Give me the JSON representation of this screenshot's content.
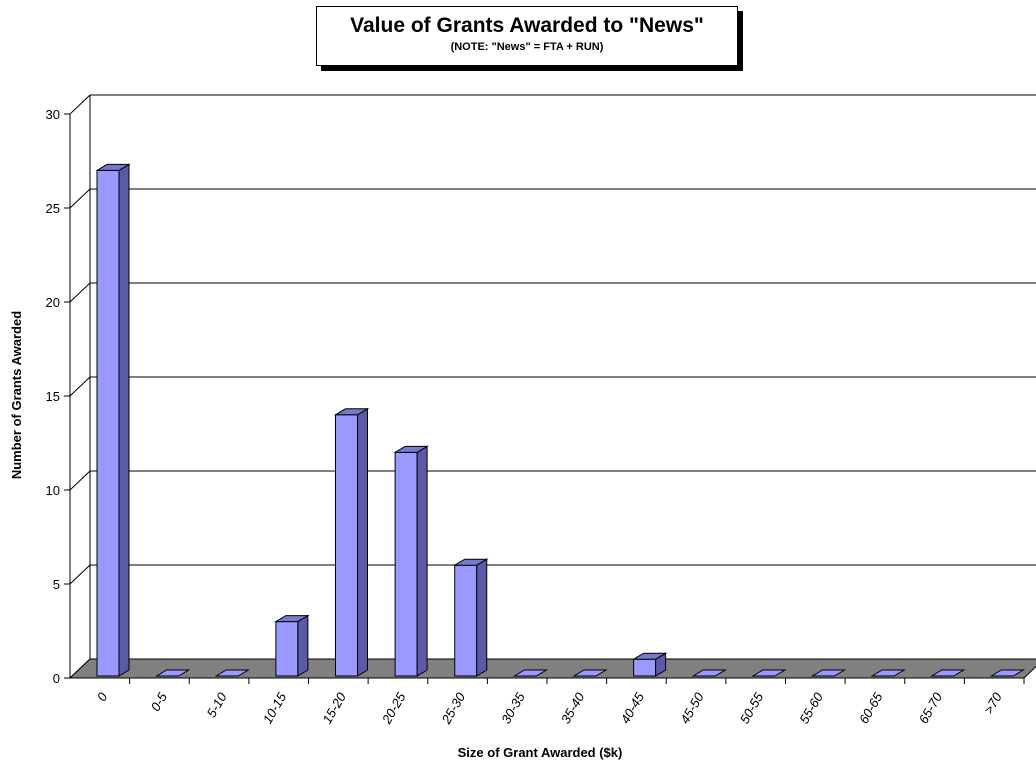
{
  "chart_data": {
    "type": "bar",
    "title": "Value of Grants Awarded to \"News\"",
    "subtitle": "(NOTE: \"News\" = FTA + RUN)",
    "xlabel": "Size of Grant Awarded ($k)",
    "ylabel": "Number of Grants Awarded",
    "categories": [
      "0",
      "0-5",
      "5-10",
      "10-15",
      "15-20",
      "20-25",
      "25-30",
      "30-35",
      "35-40",
      "40-45",
      "45-50",
      "50-55",
      "55-60",
      "60-65",
      "65-70",
      ">70"
    ],
    "values": [
      27,
      0,
      0,
      3,
      14,
      12,
      6,
      0,
      0,
      1,
      0,
      0,
      0,
      0,
      0,
      0
    ],
    "ylim": [
      0,
      30
    ],
    "yticks": [
      0,
      5,
      10,
      15,
      20,
      25,
      30
    ],
    "grid": true,
    "legend": "none",
    "colors": {
      "bar_front": "#9999ff",
      "bar_side": "#5a5aa8",
      "bar_top": "#7777cc",
      "floor": "#808080",
      "gridline": "#000000"
    }
  }
}
